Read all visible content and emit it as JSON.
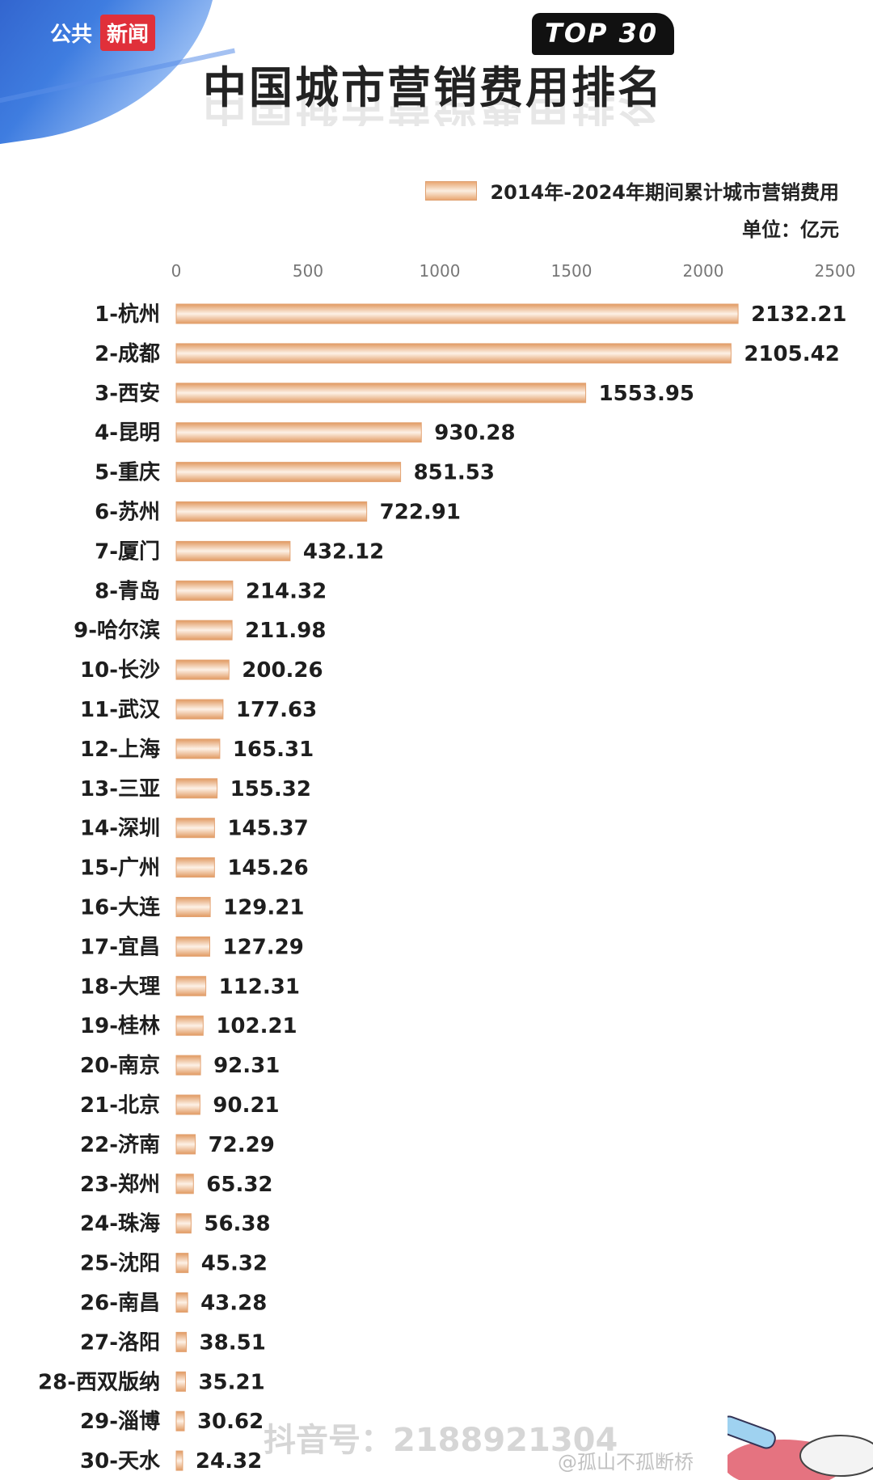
{
  "header": {
    "channel_left": "公共",
    "channel_right": "新闻",
    "badge": "TOP 30",
    "title": "中国城市营销费用排名"
  },
  "legend": {
    "label": "2014年-2024年期间累计城市营销费用"
  },
  "unit": "单位：亿元",
  "watermark": {
    "douyin": "抖音号：2188921304",
    "weibo": "@孤山不孤断桥"
  },
  "colors": {
    "bar_edge": "#e19a62",
    "bar_highlight": "#fdf1e6",
    "brand_blue": "#2b57c4",
    "brand_red": "#e0303a"
  },
  "chart_data": {
    "type": "bar",
    "orientation": "horizontal",
    "categories": [
      "1-杭州",
      "2-成都",
      "3-西安",
      "4-昆明",
      "5-重庆",
      "6-苏州",
      "7-厦门",
      "8-青岛",
      "9-哈尔滨",
      "10-长沙",
      "11-武汉",
      "12-上海",
      "13-三亚",
      "14-深圳",
      "15-广州",
      "16-大连",
      "17-宜昌",
      "18-大理",
      "19-桂林",
      "20-南京",
      "21-北京",
      "22-济南",
      "23-郑州",
      "24-珠海",
      "25-沈阳",
      "26-南昌",
      "27-洛阳",
      "28-西双版纳",
      "29-淄博",
      "30-天水"
    ],
    "values": [
      2132.21,
      2105.42,
      1553.95,
      930.28,
      851.53,
      722.91,
      432.12,
      214.32,
      211.98,
      200.26,
      177.63,
      165.31,
      155.32,
      145.37,
      145.26,
      129.21,
      127.29,
      112.31,
      102.21,
      92.31,
      90.21,
      72.29,
      65.32,
      56.38,
      45.32,
      43.28,
      38.51,
      35.21,
      30.62,
      24.32
    ],
    "value_labels": [
      "2132.21",
      "2105.42",
      "1553.95",
      "930.28",
      "851.53",
      "722.91",
      "432.12",
      "214.32",
      "211.98",
      "200.26",
      "177.63",
      "165.31",
      "155.32",
      "145.37",
      "145.26",
      "129.21",
      "127.29",
      "112.31",
      "102.21",
      "92.31",
      "90.21",
      "72.29",
      "65.32",
      "56.38",
      "45.32",
      "43.28",
      "38.51",
      "35.21",
      "30.62",
      "24.32"
    ],
    "xticks": [
      "0",
      "500",
      "1000",
      "1500",
      "2000",
      "2500"
    ],
    "xlim": [
      0,
      2500
    ],
    "grid": false,
    "legend_position": "top-right"
  }
}
